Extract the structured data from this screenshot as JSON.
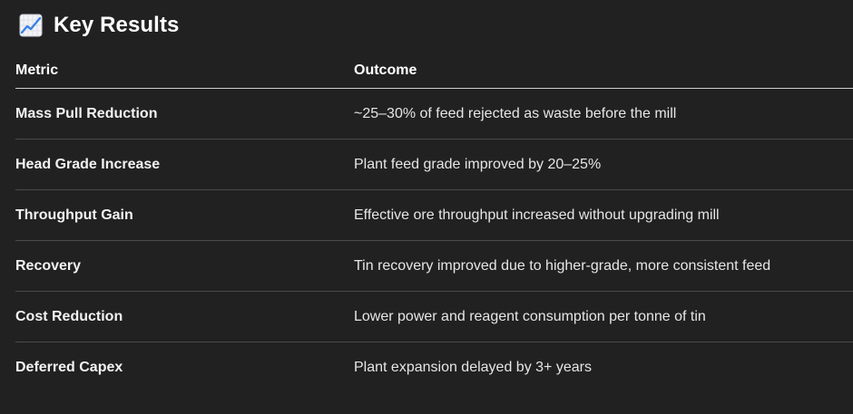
{
  "section": {
    "icon": "chart-increasing-icon",
    "title": "Key Results"
  },
  "table": {
    "headers": {
      "metric": "Metric",
      "outcome": "Outcome"
    },
    "rows": [
      {
        "metric": "Mass Pull Reduction",
        "outcome": "~25–30% of feed rejected as waste before the mill"
      },
      {
        "metric": "Head Grade Increase",
        "outcome": "Plant feed grade improved by 20–25%"
      },
      {
        "metric": "Throughput Gain",
        "outcome": "Effective ore throughput increased without upgrading mill"
      },
      {
        "metric": "Recovery",
        "outcome": "Tin recovery improved due to higher-grade, more consistent feed"
      },
      {
        "metric": "Cost Reduction",
        "outcome": "Lower power and reagent consumption per tonne of tin"
      },
      {
        "metric": "Deferred Capex",
        "outcome": "Plant expansion delayed by 3+ years"
      }
    ]
  },
  "colors": {
    "background": "#212121",
    "text": "#ececec",
    "header_rule": "#cfcfcf",
    "row_rule": "#4a4a4a"
  }
}
